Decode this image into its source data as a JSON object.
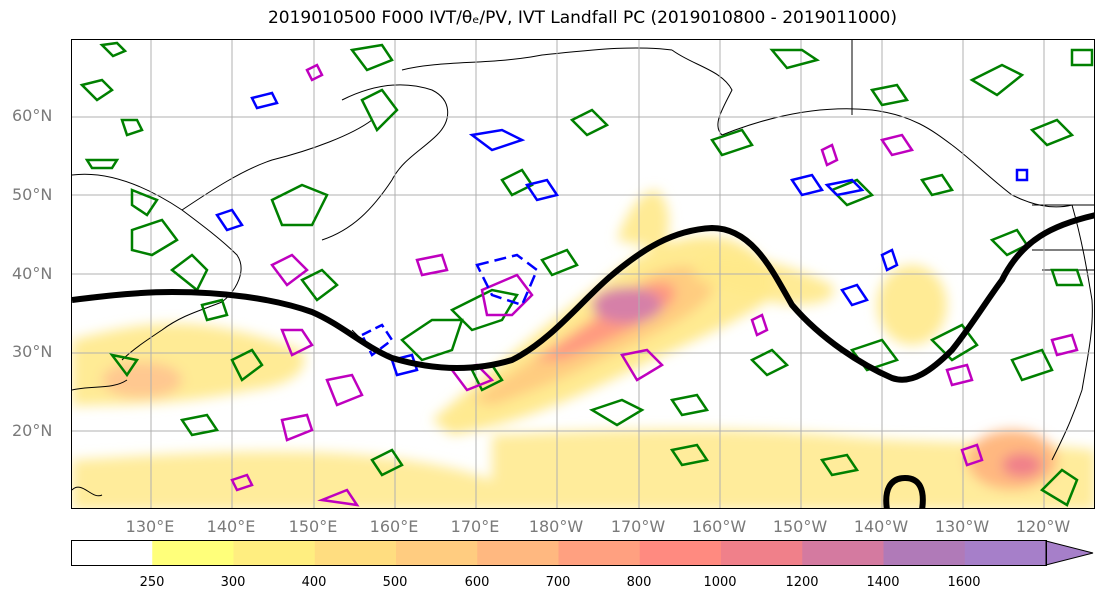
{
  "figure": {
    "title": "2019010500 F000 IVT/θₑ/PV, IVT Landfall PC (2019010800 - 2019011000)"
  },
  "map": {
    "lat_labels": [
      "60°N",
      "50°N",
      "40°N",
      "30°N",
      "20°N"
    ],
    "lon_labels": [
      "130°E",
      "140°E",
      "150°E",
      "160°E",
      "170°E",
      "180°W",
      "170°W",
      "160°W",
      "150°W",
      "140°W",
      "130°W",
      "120°W"
    ],
    "gridlines": true,
    "contour_colors": {
      "thick_line": "#000000",
      "green": "#008000",
      "magenta": "#bf00bf",
      "blue": "#0000ff"
    }
  },
  "colorbar": {
    "levels": [
      "250",
      "300",
      "400",
      "500",
      "600",
      "700",
      "800",
      "1000",
      "1200",
      "1400",
      "1600"
    ],
    "colors": [
      "#ffffff",
      "#ffff7a",
      "#ffee80",
      "#ffdd80",
      "#ffcc80",
      "#ffb880",
      "#ffa080",
      "#ff8a80",
      "#f0808a",
      "#d47aa0",
      "#b07ab8",
      "#a67fc9"
    ],
    "extend": "max"
  }
}
